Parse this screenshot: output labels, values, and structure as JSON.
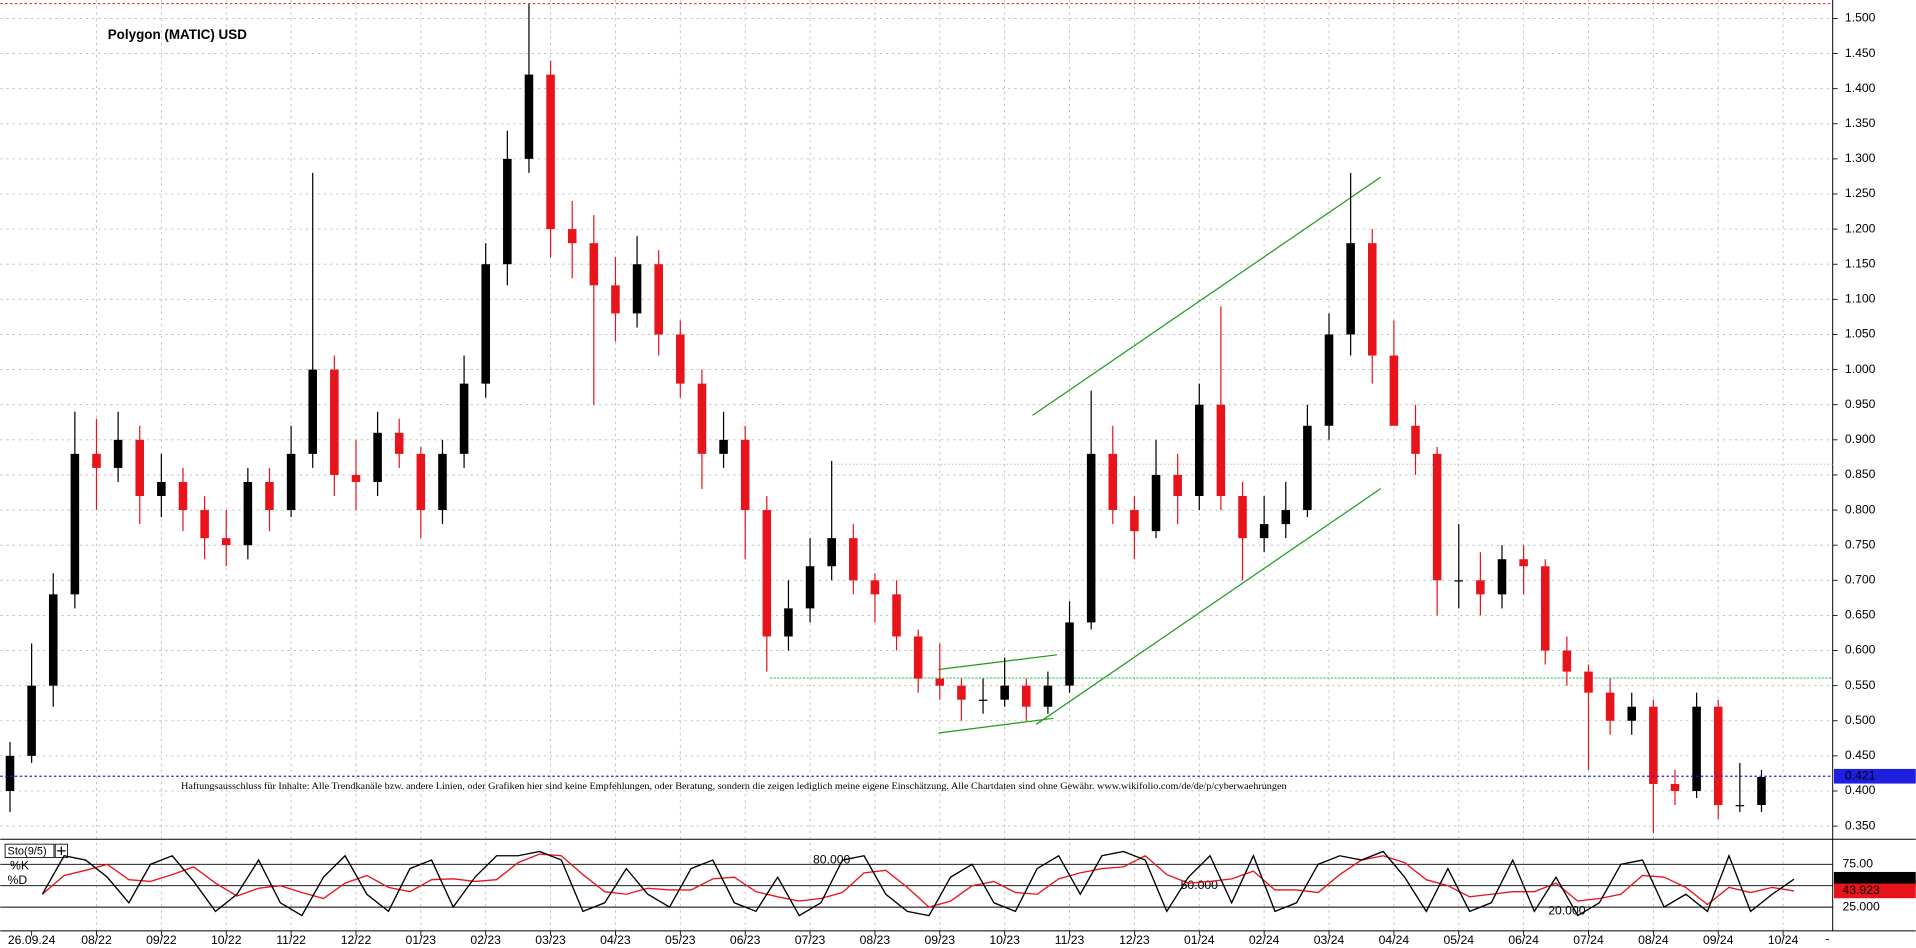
{
  "chart_data": {
    "type": "candlestick",
    "title": "Polygon (MATIC) USD",
    "note": "Haftungsausschluss für Inhalte: Alle Trendkanäle bzw. andere Linien, oder Grafiken hier sind keine Empfehlungen, oder Beratung, sondern die zeigen lediglich meine eigene Einschätzung. Alle Chartdaten sind ohne Gewähr.  www.wikifolio.com/de/de/p/cyberwaehrungen",
    "ohlc": [
      [
        0.4,
        0.47,
        0.37,
        0.45
      ],
      [
        0.45,
        0.61,
        0.44,
        0.55
      ],
      [
        0.55,
        0.71,
        0.52,
        0.68
      ],
      [
        0.68,
        0.94,
        0.66,
        0.88
      ],
      [
        0.88,
        0.93,
        0.8,
        0.86
      ],
      [
        0.86,
        0.94,
        0.84,
        0.9
      ],
      [
        0.9,
        0.92,
        0.78,
        0.82
      ],
      [
        0.82,
        0.88,
        0.79,
        0.84
      ],
      [
        0.84,
        0.86,
        0.77,
        0.8
      ],
      [
        0.8,
        0.82,
        0.73,
        0.76
      ],
      [
        0.76,
        0.8,
        0.72,
        0.75
      ],
      [
        0.75,
        0.86,
        0.73,
        0.84
      ],
      [
        0.84,
        0.86,
        0.77,
        0.8
      ],
      [
        0.8,
        0.92,
        0.79,
        0.88
      ],
      [
        0.88,
        1.28,
        0.86,
        1.0
      ],
      [
        1.0,
        1.02,
        0.82,
        0.85
      ],
      [
        0.85,
        0.9,
        0.8,
        0.84
      ],
      [
        0.84,
        0.94,
        0.82,
        0.91
      ],
      [
        0.91,
        0.93,
        0.86,
        0.88
      ],
      [
        0.88,
        0.89,
        0.76,
        0.8
      ],
      [
        0.8,
        0.9,
        0.78,
        0.88
      ],
      [
        0.88,
        1.02,
        0.86,
        0.98
      ],
      [
        0.98,
        1.18,
        0.96,
        1.15
      ],
      [
        1.15,
        1.34,
        1.12,
        1.3
      ],
      [
        1.3,
        1.52,
        1.28,
        1.42
      ],
      [
        1.42,
        1.44,
        1.16,
        1.2
      ],
      [
        1.2,
        1.24,
        1.13,
        1.18
      ],
      [
        1.18,
        1.22,
        0.95,
        1.12
      ],
      [
        1.12,
        1.16,
        1.04,
        1.08
      ],
      [
        1.08,
        1.19,
        1.06,
        1.15
      ],
      [
        1.15,
        1.17,
        1.02,
        1.05
      ],
      [
        1.05,
        1.07,
        0.96,
        0.98
      ],
      [
        0.98,
        1.0,
        0.83,
        0.88
      ],
      [
        0.88,
        0.94,
        0.86,
        0.9
      ],
      [
        0.9,
        0.92,
        0.73,
        0.8
      ],
      [
        0.8,
        0.82,
        0.57,
        0.62
      ],
      [
        0.62,
        0.7,
        0.6,
        0.66
      ],
      [
        0.66,
        0.76,
        0.64,
        0.72
      ],
      [
        0.72,
        0.87,
        0.7,
        0.76
      ],
      [
        0.76,
        0.78,
        0.68,
        0.7
      ],
      [
        0.7,
        0.71,
        0.64,
        0.68
      ],
      [
        0.68,
        0.7,
        0.6,
        0.62
      ],
      [
        0.62,
        0.63,
        0.54,
        0.56
      ],
      [
        0.56,
        0.61,
        0.53,
        0.55
      ],
      [
        0.55,
        0.56,
        0.5,
        0.53
      ],
      [
        0.53,
        0.56,
        0.51,
        0.53
      ],
      [
        0.53,
        0.59,
        0.52,
        0.55
      ],
      [
        0.55,
        0.56,
        0.5,
        0.52
      ],
      [
        0.52,
        0.57,
        0.51,
        0.55
      ],
      [
        0.55,
        0.67,
        0.54,
        0.64
      ],
      [
        0.64,
        0.97,
        0.63,
        0.88
      ],
      [
        0.88,
        0.92,
        0.78,
        0.8
      ],
      [
        0.8,
        0.82,
        0.73,
        0.77
      ],
      [
        0.77,
        0.9,
        0.76,
        0.85
      ],
      [
        0.85,
        0.88,
        0.78,
        0.82
      ],
      [
        0.82,
        0.98,
        0.8,
        0.95
      ],
      [
        0.95,
        1.09,
        0.8,
        0.82
      ],
      [
        0.82,
        0.84,
        0.7,
        0.76
      ],
      [
        0.76,
        0.82,
        0.74,
        0.78
      ],
      [
        0.78,
        0.84,
        0.76,
        0.8
      ],
      [
        0.8,
        0.95,
        0.79,
        0.92
      ],
      [
        0.92,
        1.08,
        0.9,
        1.05
      ],
      [
        1.05,
        1.28,
        1.02,
        1.18
      ],
      [
        1.18,
        1.2,
        0.98,
        1.02
      ],
      [
        1.02,
        1.07,
        0.92,
        0.92
      ],
      [
        0.92,
        0.95,
        0.85,
        0.88
      ],
      [
        0.88,
        0.89,
        0.65,
        0.7
      ],
      [
        0.7,
        0.78,
        0.66,
        0.7
      ],
      [
        0.7,
        0.74,
        0.65,
        0.68
      ],
      [
        0.68,
        0.75,
        0.66,
        0.73
      ],
      [
        0.73,
        0.75,
        0.68,
        0.72
      ],
      [
        0.72,
        0.73,
        0.58,
        0.6
      ],
      [
        0.6,
        0.62,
        0.55,
        0.57
      ],
      [
        0.57,
        0.58,
        0.43,
        0.54
      ],
      [
        0.54,
        0.56,
        0.48,
        0.5
      ],
      [
        0.5,
        0.54,
        0.48,
        0.52
      ],
      [
        0.52,
        0.53,
        0.34,
        0.41
      ],
      [
        0.41,
        0.43,
        0.38,
        0.4
      ],
      [
        0.4,
        0.54,
        0.39,
        0.52
      ],
      [
        0.52,
        0.53,
        0.36,
        0.38
      ],
      [
        0.38,
        0.44,
        0.37,
        0.38
      ],
      [
        0.38,
        0.43,
        0.37,
        0.42
      ]
    ],
    "up_color": "#000000",
    "down_color": "#e8141c",
    "ylim": [
      0.333,
      1.521
    ],
    "yticks": [
      {
        "value": 0.35,
        "label": "0.350"
      },
      {
        "value": 0.4,
        "label": "0.400"
      },
      {
        "value": 0.45,
        "label": "0.450"
      },
      {
        "value": 0.5,
        "label": "0.500"
      },
      {
        "value": 0.55,
        "label": "0.550"
      },
      {
        "value": 0.6,
        "label": "0.600"
      },
      {
        "value": 0.65,
        "label": "0.650"
      },
      {
        "value": 0.7,
        "label": "0.700"
      },
      {
        "value": 0.75,
        "label": "0.750"
      },
      {
        "value": 0.8,
        "label": "0.800"
      },
      {
        "value": 0.85,
        "label": "0.850"
      },
      {
        "value": 0.9,
        "label": "0.900"
      },
      {
        "value": 0.95,
        "label": "0.950"
      },
      {
        "value": 1.0,
        "label": "1.000"
      },
      {
        "value": 1.05,
        "label": "1.050"
      },
      {
        "value": 1.1,
        "label": "1.100"
      },
      {
        "value": 1.15,
        "label": "1.150"
      },
      {
        "value": 1.2,
        "label": "1.200"
      },
      {
        "value": 1.25,
        "label": "1.250"
      },
      {
        "value": 1.3,
        "label": "1.300"
      },
      {
        "value": 1.35,
        "label": "1.350"
      },
      {
        "value": 1.4,
        "label": "1.400"
      },
      {
        "value": 1.45,
        "label": "1.450"
      },
      {
        "value": 1.5,
        "label": "1.500"
      }
    ],
    "xticks": [
      {
        "value": 1,
        "label": "26.09.24"
      },
      {
        "value": 4,
        "label": "08/22"
      },
      {
        "value": 7,
        "label": "09/22"
      },
      {
        "value": 10,
        "label": "10/22"
      },
      {
        "value": 13,
        "label": "11/22"
      },
      {
        "value": 16,
        "label": "12/22"
      },
      {
        "value": 19,
        "label": "01/23"
      },
      {
        "value": 22,
        "label": "02/23"
      },
      {
        "value": 25,
        "label": "03/23"
      },
      {
        "value": 28,
        "label": "04/23"
      },
      {
        "value": 31,
        "label": "05/23"
      },
      {
        "value": 34,
        "label": "06/23"
      },
      {
        "value": 37,
        "label": "07/23"
      },
      {
        "value": 40,
        "label": "08/23"
      },
      {
        "value": 43,
        "label": "09/23"
      },
      {
        "value": 46,
        "label": "10/23"
      },
      {
        "value": 49,
        "label": "11/23"
      },
      {
        "value": 52,
        "label": "12/23"
      },
      {
        "value": 55,
        "label": "01/24"
      },
      {
        "value": 58,
        "label": "02/24"
      },
      {
        "value": 61,
        "label": "03/24"
      },
      {
        "value": 64,
        "label": "04/24"
      },
      {
        "value": 67,
        "label": "05/24"
      },
      {
        "value": 70,
        "label": "06/24"
      },
      {
        "value": 73,
        "label": "07/24"
      },
      {
        "value": 76,
        "label": "08/24"
      },
      {
        "value": 79,
        "label": "09/24"
      },
      {
        "value": 82,
        "label": "10/24"
      }
    ],
    "grid": true,
    "last_price": {
      "value": 0.421,
      "label": "0.421",
      "color": "#1f1fe0"
    },
    "indicator": {
      "name": "Sto(9/5)",
      "k_label": "%K",
      "d_label": "%D",
      "k_color": "#000000",
      "d_color": "#e8141c",
      "ylim": [
        0,
        100
      ],
      "levels": [
        {
          "value": 75,
          "label": "75.00"
        },
        {
          "value": 50,
          "label": ""
        },
        {
          "value": 25,
          "label": "25.000"
        }
      ],
      "annotations": [
        {
          "value": 80,
          "label": "80.000",
          "at": 38
        },
        {
          "value": 50,
          "label": "50.000",
          "at": 55
        },
        {
          "value": 20,
          "label": "20.000",
          "at": 72
        }
      ],
      "k": [
        40,
        85,
        80,
        60,
        30,
        75,
        85,
        55,
        20,
        40,
        80,
        30,
        15,
        60,
        85,
        40,
        20,
        70,
        80,
        25,
        60,
        85,
        85,
        90,
        80,
        20,
        30,
        70,
        40,
        25,
        70,
        80,
        30,
        20,
        60,
        15,
        30,
        80,
        85,
        40,
        20,
        15,
        60,
        75,
        30,
        20,
        70,
        85,
        40,
        85,
        90,
        80,
        20,
        60,
        85,
        30,
        85,
        20,
        30,
        75,
        85,
        80,
        90,
        60,
        20,
        70,
        20,
        30,
        80,
        20,
        60,
        15,
        30,
        75,
        80,
        25,
        40,
        20,
        85,
        20,
        40,
        57.51
      ],
      "d": [
        40,
        62,
        68,
        75,
        57,
        55,
        63,
        72,
        53,
        38,
        47,
        50,
        42,
        35,
        53,
        62,
        48,
        43,
        57,
        58,
        55,
        57,
        77,
        87,
        85,
        63,
        43,
        40,
        47,
        45,
        45,
        58,
        60,
        43,
        37,
        32,
        35,
        42,
        65,
        68,
        48,
        25,
        32,
        50,
        55,
        42,
        40,
        58,
        65,
        70,
        72,
        85,
        63,
        53,
        55,
        58,
        67,
        45,
        45,
        42,
        63,
        80,
        85,
        77,
        57,
        50,
        37,
        40,
        43,
        43,
        53,
        32,
        35,
        40,
        62,
        60,
        48,
        28,
        48,
        42,
        48,
        43.923
      ],
      "last_labels": [
        "57.51",
        "43.923"
      ]
    }
  }
}
